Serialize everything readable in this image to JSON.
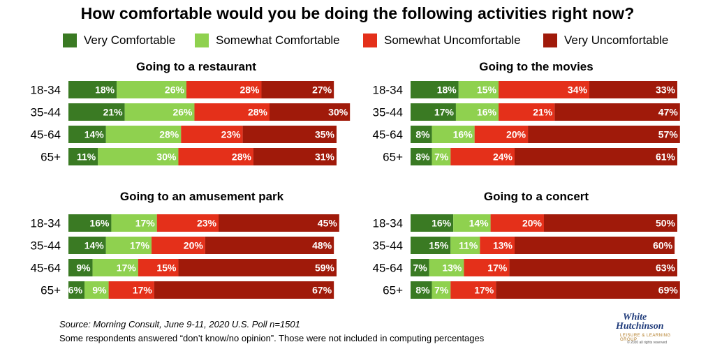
{
  "title": "How comfortable would you be doing the following activities right now?",
  "legend": [
    {
      "label": "Very Comfortable",
      "color": "#3a7a23"
    },
    {
      "label": "Somewhat Comfortable",
      "color": "#8fd14f"
    },
    {
      "label": "Somewhat Uncomfortable",
      "color": "#e4301a"
    },
    {
      "label": "Very Uncomfortable",
      "color": "#a01a0a"
    }
  ],
  "chart_data": [
    {
      "type": "bar",
      "orientation": "horizontal-stacked",
      "title": "Going to a restaurant",
      "categories": [
        "18-34",
        "35-44",
        "45-64",
        "65+"
      ],
      "series": [
        {
          "name": "Very Comfortable",
          "values": [
            18,
            21,
            14,
            11
          ]
        },
        {
          "name": "Somewhat Comfortable",
          "values": [
            26,
            26,
            28,
            30
          ]
        },
        {
          "name": "Somewhat Uncomfortable",
          "values": [
            28,
            28,
            23,
            28
          ]
        },
        {
          "name": "Very Uncomfortable",
          "values": [
            27,
            30,
            35,
            31
          ]
        }
      ]
    },
    {
      "type": "bar",
      "orientation": "horizontal-stacked",
      "title": "Going to the movies",
      "categories": [
        "18-34",
        "35-44",
        "45-64",
        "65+"
      ],
      "series": [
        {
          "name": "Very Comfortable",
          "values": [
            18,
            17,
            8,
            8
          ]
        },
        {
          "name": "Somewhat Comfortable",
          "values": [
            15,
            16,
            16,
            7
          ]
        },
        {
          "name": "Somewhat Uncomfortable",
          "values": [
            34,
            21,
            20,
            24
          ]
        },
        {
          "name": "Very Uncomfortable",
          "values": [
            33,
            47,
            57,
            61
          ]
        }
      ]
    },
    {
      "type": "bar",
      "orientation": "horizontal-stacked",
      "title": "Going to an amusement park",
      "categories": [
        "18-34",
        "35-44",
        "45-64",
        "65+"
      ],
      "series": [
        {
          "name": "Very Comfortable",
          "values": [
            16,
            14,
            9,
            6
          ]
        },
        {
          "name": "Somewhat Comfortable",
          "values": [
            17,
            17,
            17,
            9
          ]
        },
        {
          "name": "Somewhat Uncomfortable",
          "values": [
            23,
            20,
            15,
            17
          ]
        },
        {
          "name": "Very Uncomfortable",
          "values": [
            45,
            48,
            59,
            67
          ]
        }
      ]
    },
    {
      "type": "bar",
      "orientation": "horizontal-stacked",
      "title": "Going to a concert",
      "categories": [
        "18-34",
        "35-44",
        "45-64",
        "65+"
      ],
      "series": [
        {
          "name": "Very Comfortable",
          "values": [
            16,
            15,
            7,
            8
          ]
        },
        {
          "name": "Somewhat Comfortable",
          "values": [
            14,
            11,
            13,
            7
          ]
        },
        {
          "name": "Somewhat Uncomfortable",
          "values": [
            20,
            13,
            17,
            17
          ]
        },
        {
          "name": "Very Uncomfortable",
          "values": [
            50,
            60,
            63,
            69
          ]
        }
      ]
    }
  ],
  "footer": {
    "source": "Source: Morning Consult, June 9-11, 2020 U.S. Poll n=1501",
    "note": "Some respondents answered “don’t know/no opinion”. Those were not included in computing percentages"
  },
  "logo": {
    "line1": "White",
    "line2": "Hutchinson",
    "tagline": "LEISURE & LEARNING GROUP",
    "copyright": "© 2020 all rights reserved"
  }
}
